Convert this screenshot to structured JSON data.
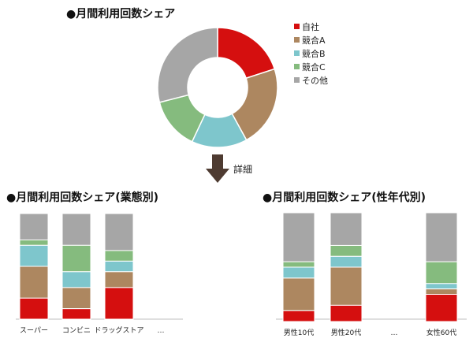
{
  "colors": {
    "自社": "#d50f0f",
    "競合A": "#ad8760",
    "競合B": "#7ec6cc",
    "競合C": "#85bb7e",
    "その他": "#a6a6a6",
    "arrow": "#4e3b31",
    "axis": "#bfbfbf"
  },
  "detail_label": "詳細",
  "chart_data": [
    {
      "type": "pie",
      "title": "●月間利用回数シェア",
      "labels": [
        "自社",
        "競合A",
        "競合B",
        "競合C",
        "その他"
      ],
      "values": [
        20,
        22,
        15,
        14,
        29
      ],
      "legend": "right"
    },
    {
      "type": "bar",
      "stacked": true,
      "title": "●月間利用回数シェア(業態別)",
      "categories": [
        "スーパー",
        "コンビニ",
        "ドラッグストア",
        "…"
      ],
      "series": [
        {
          "name": "自社",
          "values": [
            20,
            10,
            30,
            null
          ]
        },
        {
          "name": "競合A",
          "values": [
            30,
            20,
            15,
            null
          ]
        },
        {
          "name": "競合B",
          "values": [
            20,
            15,
            10,
            null
          ]
        },
        {
          "name": "競合C",
          "values": [
            5,
            25,
            10,
            null
          ]
        },
        {
          "name": "その他",
          "values": [
            25,
            30,
            35,
            null
          ]
        }
      ],
      "ylim": [
        0,
        100
      ]
    },
    {
      "type": "bar",
      "stacked": true,
      "title": "●月間利用回数シェア(性年代別)",
      "categories": [
        "男性10代",
        "男性20代",
        "…",
        "女性60代"
      ],
      "series": [
        {
          "name": "自社",
          "values": [
            10,
            15,
            null,
            25
          ]
        },
        {
          "name": "競合A",
          "values": [
            30,
            35,
            null,
            5
          ]
        },
        {
          "name": "競合B",
          "values": [
            10,
            10,
            null,
            5
          ]
        },
        {
          "name": "競合C",
          "values": [
            5,
            10,
            null,
            20
          ]
        },
        {
          "name": "その他",
          "values": [
            45,
            30,
            null,
            45
          ]
        }
      ],
      "ylim": [
        0,
        100
      ]
    }
  ]
}
